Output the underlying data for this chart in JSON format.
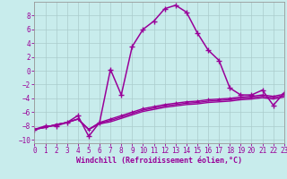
{
  "xlabel": "Windchill (Refroidissement éolien,°C)",
  "xlim": [
    0,
    23
  ],
  "ylim": [
    -10.5,
    10.0
  ],
  "xticks": [
    0,
    1,
    2,
    3,
    4,
    5,
    6,
    7,
    8,
    9,
    10,
    11,
    12,
    13,
    14,
    15,
    16,
    17,
    18,
    19,
    20,
    21,
    22,
    23
  ],
  "yticks": [
    -10,
    -8,
    -6,
    -4,
    -2,
    0,
    2,
    4,
    6,
    8
  ],
  "bg_color": "#c8ecec",
  "line_color": "#990099",
  "grid_color": "#aacccc",
  "main_y": [
    -8.5,
    -8.0,
    -8.0,
    -7.5,
    -6.5,
    -9.5,
    -7.5,
    0.2,
    -3.5,
    3.5,
    6.0,
    7.2,
    9.0,
    9.5,
    8.5,
    5.5,
    3.0,
    1.5,
    -2.5,
    -3.5,
    -3.5,
    -2.8,
    -5.0,
    -3.2
  ],
  "flat1_y": [
    -8.5,
    -8.2,
    -7.8,
    -7.5,
    -7.0,
    -8.5,
    -7.5,
    -7.0,
    -6.5,
    -6.0,
    -5.5,
    -5.2,
    -4.9,
    -4.7,
    -4.5,
    -4.4,
    -4.2,
    -4.1,
    -4.0,
    -3.8,
    -3.7,
    -3.5,
    -3.7,
    -3.4
  ],
  "flat2_y": [
    -8.5,
    -8.2,
    -7.8,
    -7.5,
    -7.0,
    -8.5,
    -7.6,
    -7.2,
    -6.7,
    -6.2,
    -5.7,
    -5.4,
    -5.1,
    -4.9,
    -4.7,
    -4.6,
    -4.4,
    -4.3,
    -4.2,
    -4.0,
    -3.9,
    -3.7,
    -3.9,
    -3.6
  ],
  "flat3_y": [
    -8.5,
    -8.2,
    -7.8,
    -7.5,
    -7.0,
    -8.5,
    -7.7,
    -7.4,
    -6.9,
    -6.4,
    -5.9,
    -5.6,
    -5.3,
    -5.1,
    -4.9,
    -4.8,
    -4.6,
    -4.5,
    -4.4,
    -4.2,
    -4.1,
    -3.9,
    -4.1,
    -3.8
  ]
}
